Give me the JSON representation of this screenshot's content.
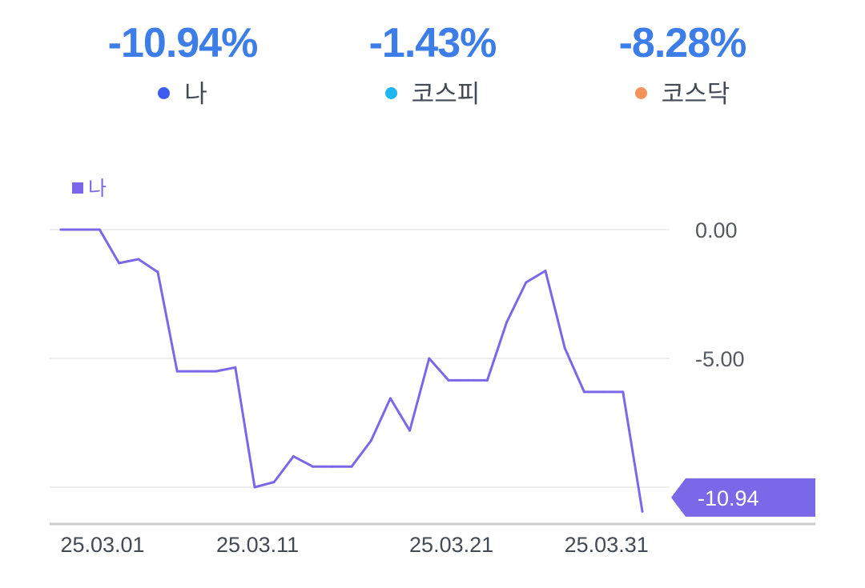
{
  "summary": [
    {
      "value": "-10.94%",
      "label": "나",
      "dot_color": "#3d5af1"
    },
    {
      "value": "-1.43%",
      "label": "코스피",
      "dot_color": "#1fb6f0"
    },
    {
      "value": "-8.28%",
      "label": "코스닥",
      "dot_color": "#f4935a"
    }
  ],
  "colors": {
    "accent": "#3d7de8",
    "series": "#7b68e8",
    "badge": "#7b68e8"
  },
  "chart_data": {
    "type": "line",
    "legend": "나",
    "legend_position": "top-left",
    "grid": true,
    "y_axis_position": "right",
    "ylim": [
      -11.5,
      0.6
    ],
    "y_ticks": [
      0,
      -5,
      -10
    ],
    "y_tick_labels": [
      "0.00",
      "-5.00",
      ""
    ],
    "x_tick_labels": [
      "25.03.01",
      "25.03.11",
      "25.03.21",
      "25.03.31"
    ],
    "x_tick_index": [
      0,
      8,
      18,
      26
    ],
    "series": [
      {
        "name": "나",
        "values": [
          0,
          0,
          0,
          -1.3,
          -1.15,
          -1.65,
          -5.5,
          -5.5,
          -5.5,
          -5.35,
          -10.0,
          -9.8,
          -8.8,
          -9.2,
          -9.2,
          -9.2,
          -8.2,
          -6.55,
          -7.8,
          -5.0,
          -5.85,
          -5.85,
          -5.85,
          -3.6,
          -2.05,
          -1.6,
          -4.6,
          -6.3,
          -6.3,
          -6.3,
          -10.94
        ]
      }
    ],
    "last_value_badge": "-10.94"
  }
}
